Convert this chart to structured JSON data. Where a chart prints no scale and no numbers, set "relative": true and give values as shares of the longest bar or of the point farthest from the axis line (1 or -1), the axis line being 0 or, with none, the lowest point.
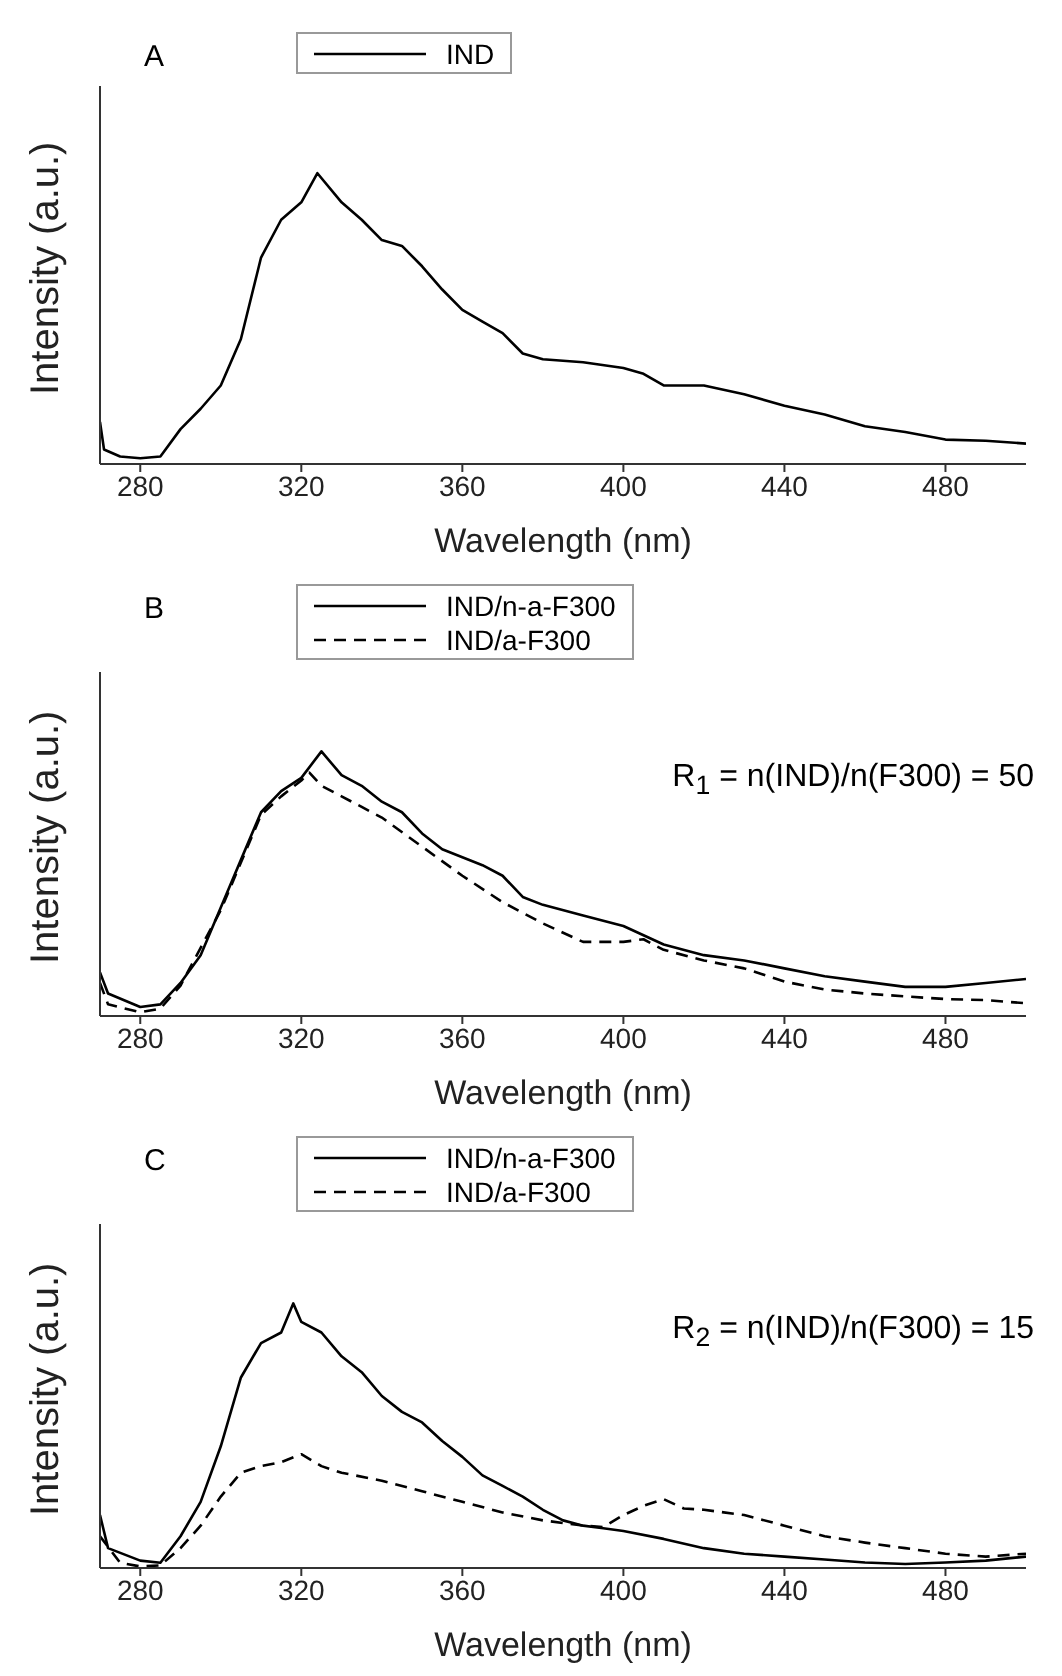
{
  "chart_data": [
    {
      "type": "line",
      "title": "A",
      "xlabel": "Wavelength (nm)",
      "ylabel": "Intensity (a.u.)",
      "relative": true,
      "xlim": [
        270,
        500
      ],
      "xticks": [
        280,
        320,
        360,
        400,
        440,
        480
      ],
      "legend": "top",
      "marker": "none",
      "series": [
        {
          "name": "IND",
          "color": "#000000",
          "line_style": "solid",
          "x": [
            270,
            271,
            275,
            280,
            285,
            290,
            295,
            300,
            305,
            310,
            315,
            320,
            324,
            330,
            335,
            340,
            345,
            350,
            355,
            360,
            365,
            370,
            375,
            380,
            390,
            400,
            405,
            410,
            420,
            430,
            440,
            450,
            460,
            470,
            480,
            490,
            500
          ],
          "values": [
            0.145,
            0.05,
            0.026,
            0.02,
            0.026,
            0.12,
            0.19,
            0.27,
            0.43,
            0.71,
            0.84,
            0.9,
            1.0,
            0.9,
            0.84,
            0.77,
            0.75,
            0.68,
            0.6,
            0.53,
            0.49,
            0.45,
            0.38,
            0.36,
            0.35,
            0.33,
            0.31,
            0.27,
            0.27,
            0.24,
            0.2,
            0.17,
            0.13,
            0.11,
            0.084,
            0.08,
            0.07
          ]
        }
      ]
    },
    {
      "type": "line",
      "title": "B",
      "xlabel": "Wavelength (nm)",
      "ylabel": "Intensity (a.u.)",
      "relative": true,
      "xlim": [
        270,
        500
      ],
      "xticks": [
        280,
        320,
        360,
        400,
        440,
        480
      ],
      "legend": "top",
      "marker": "none",
      "annotations": [
        "R$_{1}$ = n(IND)/n(F300) = 50"
      ],
      "series": [
        {
          "name": "IND/n-a-F300",
          "color": "#000000",
          "line_style": "solid",
          "x": [
            270,
            272,
            280,
            285,
            290,
            295,
            300,
            305,
            310,
            315,
            320,
            325,
            330,
            335,
            340,
            345,
            350,
            355,
            360,
            365,
            370,
            375,
            380,
            390,
            400,
            410,
            420,
            430,
            440,
            450,
            460,
            470,
            480,
            490,
            500
          ],
          "values": [
            0.165,
            0.085,
            0.034,
            0.044,
            0.125,
            0.23,
            0.41,
            0.59,
            0.77,
            0.85,
            0.9,
            1.0,
            0.91,
            0.87,
            0.81,
            0.77,
            0.69,
            0.63,
            0.6,
            0.57,
            0.53,
            0.45,
            0.42,
            0.38,
            0.34,
            0.27,
            0.23,
            0.21,
            0.18,
            0.15,
            0.13,
            0.11,
            0.11,
            0.125,
            0.14
          ]
        },
        {
          "name": "IND/a-F300",
          "color": "#000000",
          "line_style": "dashed",
          "x": [
            270,
            272,
            280,
            285,
            290,
            300,
            305,
            310,
            315,
            320,
            322,
            325,
            330,
            335,
            340,
            350,
            360,
            370,
            380,
            390,
            400,
            405,
            410,
            420,
            430,
            440,
            450,
            460,
            470,
            480,
            490,
            500
          ],
          "values": [
            0.125,
            0.044,
            0.014,
            0.028,
            0.115,
            0.4,
            0.58,
            0.76,
            0.83,
            0.89,
            0.92,
            0.87,
            0.83,
            0.79,
            0.75,
            0.64,
            0.53,
            0.43,
            0.35,
            0.28,
            0.28,
            0.29,
            0.25,
            0.21,
            0.18,
            0.13,
            0.1,
            0.085,
            0.074,
            0.064,
            0.06,
            0.048
          ]
        }
      ]
    },
    {
      "type": "line",
      "title": "C",
      "xlabel": "Wavelength (nm)",
      "ylabel": "Intensity (a.u.)",
      "relative": true,
      "xlim": [
        270,
        500
      ],
      "xticks": [
        280,
        320,
        360,
        400,
        440,
        480
      ],
      "legend": "top",
      "marker": "none",
      "annotations": [
        "R$_{2}$ = n(IND)/n(F300) = 15"
      ],
      "series": [
        {
          "name": "IND/n-a-F300",
          "color": "#000000",
          "line_style": "solid",
          "x": [
            270,
            272,
            280,
            285,
            290,
            295,
            300,
            305,
            310,
            315,
            318,
            320,
            325,
            330,
            335,
            340,
            345,
            350,
            355,
            360,
            365,
            370,
            375,
            380,
            385,
            390,
            395,
            400,
            410,
            420,
            430,
            440,
            450,
            460,
            470,
            480,
            490,
            500
          ],
          "values": [
            0.2,
            0.075,
            0.028,
            0.02,
            0.12,
            0.25,
            0.46,
            0.72,
            0.85,
            0.89,
            1.0,
            0.93,
            0.89,
            0.8,
            0.74,
            0.65,
            0.59,
            0.55,
            0.48,
            0.42,
            0.35,
            0.31,
            0.27,
            0.22,
            0.18,
            0.16,
            0.15,
            0.14,
            0.11,
            0.075,
            0.054,
            0.043,
            0.032,
            0.021,
            0.015,
            0.021,
            0.028,
            0.043
          ]
        },
        {
          "name": "IND/a-F300",
          "color": "#000000",
          "line_style": "dashed",
          "x": [
            270,
            275,
            280,
            285,
            290,
            295,
            300,
            305,
            310,
            315,
            320,
            325,
            330,
            340,
            350,
            360,
            370,
            380,
            390,
            395,
            400,
            405,
            410,
            415,
            420,
            430,
            440,
            450,
            460,
            470,
            480,
            490,
            500
          ],
          "values": [
            0.12,
            0.02,
            0.006,
            0.01,
            0.075,
            0.16,
            0.27,
            0.36,
            0.385,
            0.4,
            0.43,
            0.385,
            0.36,
            0.33,
            0.29,
            0.25,
            0.21,
            0.18,
            0.16,
            0.155,
            0.2,
            0.235,
            0.26,
            0.225,
            0.22,
            0.2,
            0.16,
            0.12,
            0.096,
            0.075,
            0.054,
            0.043,
            0.054
          ]
        }
      ]
    }
  ]
}
